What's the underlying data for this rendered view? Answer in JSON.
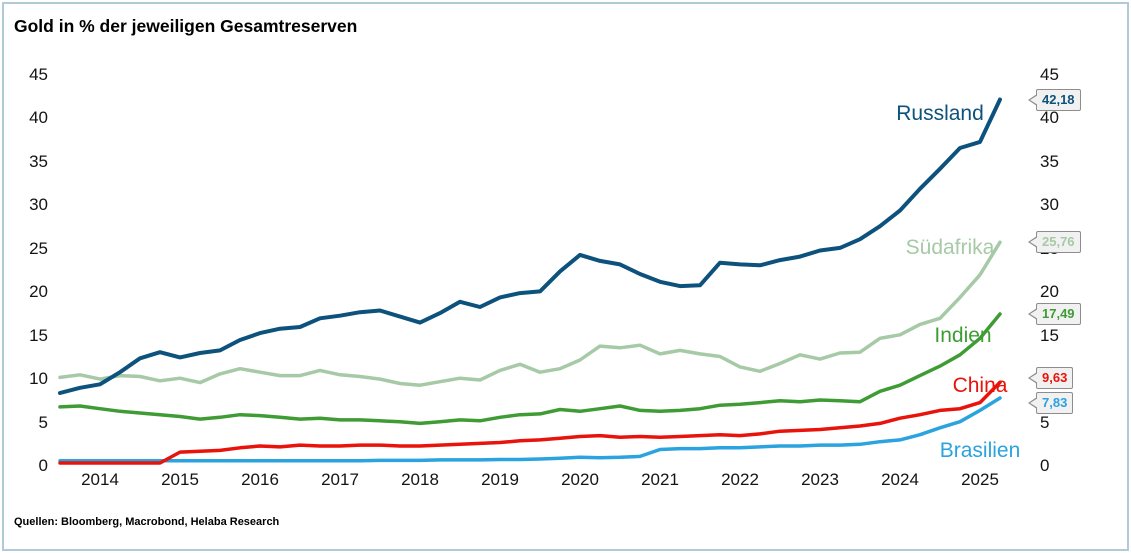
{
  "title": "Gold in % der jeweiligen Gesamtreserven",
  "source": "Quellen: Bloomberg, Macrobond, Helaba Research",
  "chart_data": {
    "type": "line",
    "title": "Gold in % der jeweiligen Gesamtreserven",
    "xlabel": "",
    "ylabel": "",
    "ylim": [
      0,
      45
    ],
    "grid": false,
    "y_ticks": [
      0,
      5,
      10,
      15,
      20,
      25,
      30,
      35,
      40,
      45
    ],
    "y_tick_sides": "both",
    "year_labels": [
      "2014",
      "2015",
      "2016",
      "2017",
      "2018",
      "2019",
      "2020",
      "2021",
      "2022",
      "2023",
      "2024",
      "2025"
    ],
    "x": [
      2014.0,
      2014.25,
      2014.5,
      2014.75,
      2015.0,
      2015.25,
      2015.5,
      2015.75,
      2016.0,
      2016.25,
      2016.5,
      2016.75,
      2017.0,
      2017.25,
      2017.5,
      2017.75,
      2018.0,
      2018.25,
      2018.5,
      2018.75,
      2019.0,
      2019.25,
      2019.5,
      2019.75,
      2020.0,
      2020.25,
      2020.5,
      2020.75,
      2021.0,
      2021.25,
      2021.5,
      2021.75,
      2022.0,
      2022.25,
      2022.5,
      2022.75,
      2023.0,
      2023.25,
      2023.5,
      2023.75,
      2024.0,
      2024.25,
      2024.5,
      2024.75,
      2025.0,
      2025.25,
      2025.5,
      2025.75
    ],
    "series": [
      {
        "name": "Russland",
        "color": "#0d527c",
        "end_value": 42.18,
        "end_label": "42,18",
        "values": [
          8.4,
          9.0,
          9.4,
          10.8,
          12.4,
          13.1,
          12.5,
          13.0,
          13.3,
          14.5,
          15.3,
          15.8,
          16.0,
          17.0,
          17.3,
          17.7,
          17.9,
          17.2,
          16.5,
          17.6,
          18.9,
          18.3,
          19.4,
          19.9,
          20.1,
          22.4,
          24.3,
          23.6,
          23.2,
          22.1,
          21.2,
          20.7,
          20.8,
          23.4,
          23.2,
          23.1,
          23.7,
          24.1,
          24.8,
          25.1,
          26.1,
          27.6,
          29.4,
          31.9,
          34.2,
          36.6,
          37.3,
          42.18
        ]
      },
      {
        "name": "Südafrika",
        "color": "#a6c9a6",
        "end_value": 25.76,
        "end_label": "25,76",
        "values": [
          10.2,
          10.5,
          10.0,
          10.4,
          10.3,
          9.8,
          10.1,
          9.6,
          10.6,
          11.2,
          10.8,
          10.4,
          10.4,
          11.0,
          10.5,
          10.3,
          10.0,
          9.5,
          9.3,
          9.7,
          10.1,
          9.9,
          11.0,
          11.7,
          10.8,
          11.2,
          12.2,
          13.8,
          13.6,
          13.9,
          12.9,
          13.3,
          12.9,
          12.6,
          11.4,
          10.9,
          11.8,
          12.8,
          12.3,
          13.0,
          13.1,
          14.7,
          15.1,
          16.3,
          17.0,
          19.4,
          22.0,
          25.76
        ]
      },
      {
        "name": "Indien",
        "color": "#3f9c35",
        "end_value": 17.49,
        "end_label": "17,49",
        "values": [
          6.8,
          6.9,
          6.6,
          6.3,
          6.1,
          5.9,
          5.7,
          5.4,
          5.6,
          5.9,
          5.8,
          5.6,
          5.4,
          5.5,
          5.3,
          5.3,
          5.2,
          5.1,
          4.9,
          5.1,
          5.3,
          5.2,
          5.6,
          5.9,
          6.0,
          6.5,
          6.3,
          6.6,
          6.9,
          6.4,
          6.3,
          6.4,
          6.6,
          7.0,
          7.1,
          7.3,
          7.5,
          7.4,
          7.6,
          7.5,
          7.4,
          8.6,
          9.3,
          10.4,
          11.5,
          12.8,
          14.7,
          17.49
        ]
      },
      {
        "name": "China",
        "color": "#e8130b",
        "end_value": 9.63,
        "end_label": "9,63",
        "values": [
          0.35,
          0.35,
          0.34,
          0.34,
          0.35,
          0.35,
          1.6,
          1.7,
          1.8,
          2.1,
          2.3,
          2.2,
          2.4,
          2.3,
          2.3,
          2.4,
          2.4,
          2.3,
          2.3,
          2.4,
          2.5,
          2.6,
          2.7,
          2.9,
          3.0,
          3.2,
          3.4,
          3.5,
          3.3,
          3.4,
          3.3,
          3.4,
          3.5,
          3.6,
          3.5,
          3.7,
          4.0,
          4.1,
          4.2,
          4.4,
          4.6,
          4.9,
          5.5,
          5.9,
          6.4,
          6.6,
          7.3,
          9.63
        ]
      },
      {
        "name": "Brasilien",
        "color": "#2aa3de",
        "end_value": 7.83,
        "end_label": "7,83",
        "values": [
          0.6,
          0.6,
          0.6,
          0.6,
          0.6,
          0.6,
          0.6,
          0.6,
          0.6,
          0.6,
          0.6,
          0.6,
          0.6,
          0.6,
          0.6,
          0.6,
          0.65,
          0.65,
          0.65,
          0.7,
          0.7,
          0.7,
          0.75,
          0.75,
          0.8,
          0.9,
          1.0,
          0.95,
          1.0,
          1.1,
          1.9,
          2.0,
          2.0,
          2.1,
          2.1,
          2.2,
          2.3,
          2.3,
          2.4,
          2.4,
          2.5,
          2.8,
          3.0,
          3.6,
          4.4,
          5.1,
          6.4,
          7.83
        ]
      }
    ]
  }
}
